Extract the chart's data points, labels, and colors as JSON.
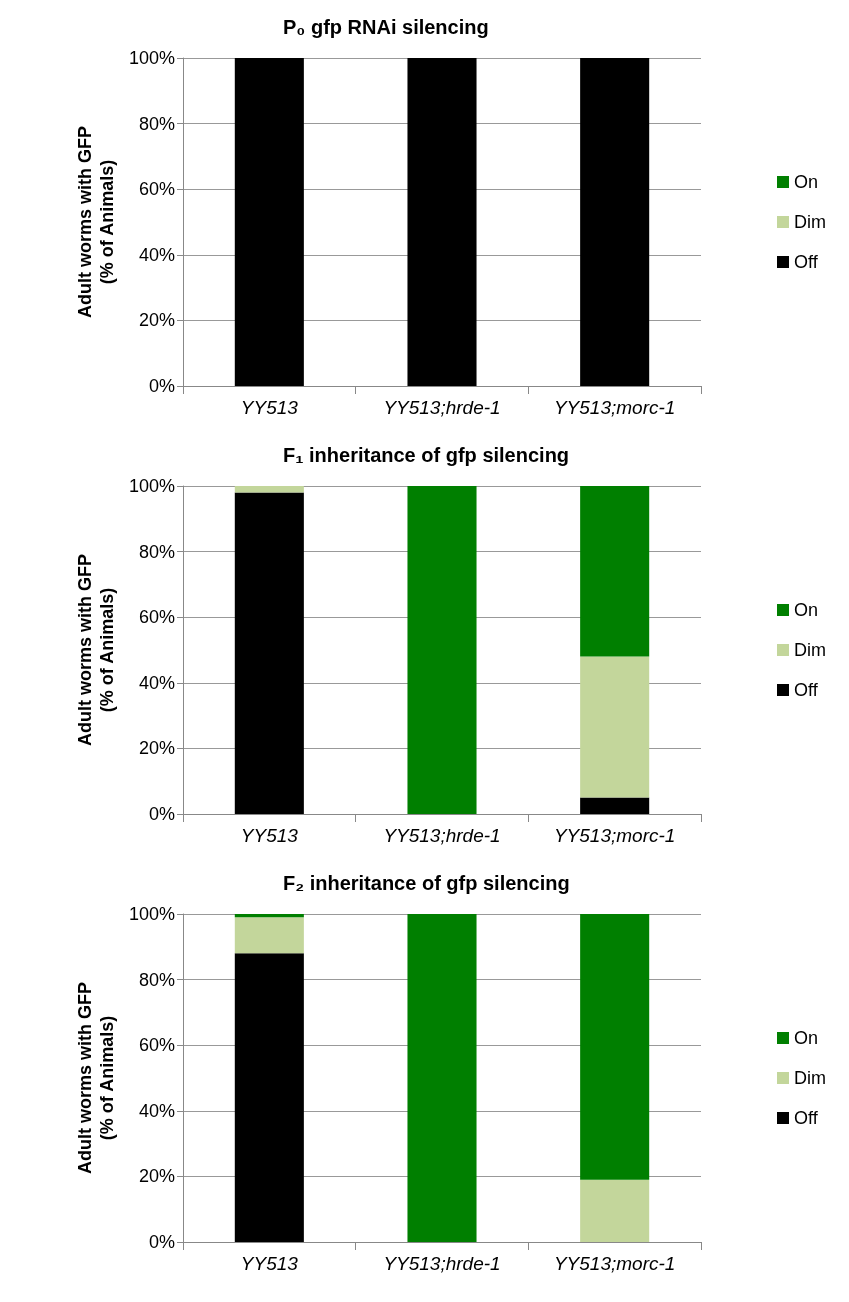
{
  "chart_data": [
    {
      "type": "bar",
      "title": "P₀ gfp RNAi silencing",
      "ylabel": "Adult worms with GFP\n(% of Animals)",
      "categories": [
        "YY513",
        "YY513;hrde-1",
        "YY513;morc-1"
      ],
      "stacked": true,
      "series": [
        {
          "name": "Off",
          "color": "#000000",
          "values": [
            100,
            100,
            100
          ]
        },
        {
          "name": "Dim",
          "color": "#c3d69b",
          "values": [
            0,
            0,
            0
          ]
        },
        {
          "name": "On",
          "color": "#007f00",
          "values": [
            0,
            0,
            0
          ]
        }
      ],
      "ylim": [
        0,
        100
      ],
      "yticks": [
        {
          "value": 0,
          "label": "0%"
        },
        {
          "value": 20,
          "label": "20%"
        },
        {
          "value": 40,
          "label": "40%"
        },
        {
          "value": 60,
          "label": "60%"
        },
        {
          "value": 80,
          "label": "80%"
        },
        {
          "value": 100,
          "label": "100%"
        }
      ],
      "grid": "y",
      "legend": "right"
    },
    {
      "type": "bar",
      "title": "F₁ inheritance of gfp silencing",
      "ylabel": "Adult worms with GFP\n(% of Animals)",
      "categories": [
        "YY513",
        "YY513;hrde-1",
        "YY513;morc-1"
      ],
      "stacked": true,
      "series": [
        {
          "name": "Off",
          "color": "#000000",
          "values": [
            98,
            0,
            5
          ]
        },
        {
          "name": "Dim",
          "color": "#c3d69b",
          "values": [
            2,
            0,
            43
          ]
        },
        {
          "name": "On",
          "color": "#007f00",
          "values": [
            0,
            100,
            52
          ]
        }
      ],
      "ylim": [
        0,
        100
      ],
      "yticks": [
        {
          "value": 0,
          "label": "0%"
        },
        {
          "value": 20,
          "label": "20%"
        },
        {
          "value": 40,
          "label": "40%"
        },
        {
          "value": 60,
          "label": "60%"
        },
        {
          "value": 80,
          "label": "80%"
        },
        {
          "value": 100,
          "label": "100%"
        }
      ],
      "grid": "y",
      "legend": "right"
    },
    {
      "type": "bar",
      "title": "F₂ inheritance of gfp silencing",
      "ylabel": "Adult worms with GFP\n(% of Animals)",
      "categories": [
        "YY513",
        "YY513;hrde-1",
        "YY513;morc-1"
      ],
      "stacked": true,
      "series": [
        {
          "name": "Off",
          "color": "#000000",
          "values": [
            88,
            0,
            0
          ]
        },
        {
          "name": "Dim",
          "color": "#c3d69b",
          "values": [
            11,
            0,
            19
          ]
        },
        {
          "name": "On",
          "color": "#007f00",
          "values": [
            1,
            100,
            81
          ]
        }
      ],
      "ylim": [
        0,
        100
      ],
      "yticks": [
        {
          "value": 0,
          "label": "0%"
        },
        {
          "value": 20,
          "label": "20%"
        },
        {
          "value": 40,
          "label": "40%"
        },
        {
          "value": 60,
          "label": "60%"
        },
        {
          "value": 80,
          "label": "80%"
        },
        {
          "value": 100,
          "label": "100%"
        }
      ],
      "grid": "y",
      "legend": "right"
    }
  ]
}
